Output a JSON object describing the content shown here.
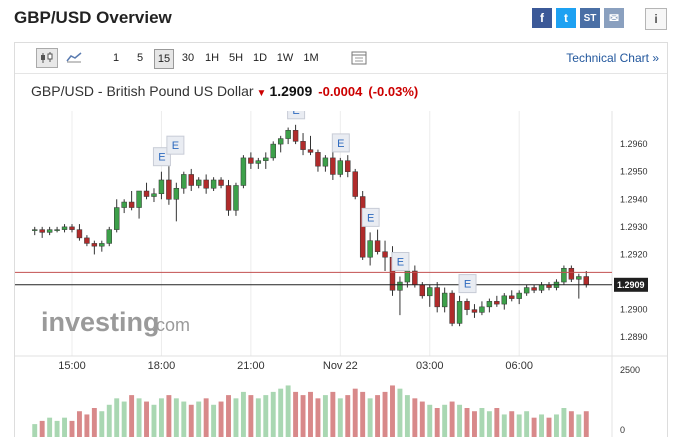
{
  "header": {
    "title": "GBP/USD Overview"
  },
  "share": {
    "facebook": "f",
    "twitter": "t",
    "stocktwits": "ST",
    "email": "✉",
    "info": "i"
  },
  "toolbar": {
    "chart_types": [
      "candlestick-icon",
      "area-chart-icon"
    ],
    "intervals": [
      "1",
      "5",
      "15",
      "30",
      "1H",
      "5H",
      "1D",
      "1W",
      "1M"
    ],
    "selected_interval": "15",
    "technical_chart": "Technical Chart »"
  },
  "quote": {
    "name": "GBP/USD - British Pound US Dollar",
    "direction_icon": "down-arrow-icon",
    "price": "1.2909",
    "change": "-0.0004",
    "change_pct": "(-0.03%)"
  },
  "watermark": {
    "brand": "investing",
    "suffix": ".com"
  },
  "colors": {
    "up": "#3da04a",
    "down": "#b02b2b",
    "vol_up": "#a9d7b2",
    "vol_down": "#d8898a"
  },
  "chart_data": {
    "type": "candlestick",
    "y_ticks": [
      "1.2960",
      "1.2950",
      "1.2940",
      "1.2930",
      "1.2920",
      "1.2900",
      "1.2890"
    ],
    "current_price_label": "1.2909",
    "x_ticks": [
      "15:00",
      "18:00",
      "21:00",
      "Nov 22",
      "03:00",
      "06:00"
    ],
    "volume_ticks": [
      "2500",
      "0"
    ],
    "event_label": "E",
    "ylim": [
      1.2885,
      1.2972
    ],
    "red_line": 1.29135,
    "black_line": 1.2909,
    "candles": [
      [
        1.2929,
        1.293,
        1.2927,
        1.2929
      ],
      [
        1.2929,
        1.293,
        1.2926,
        1.2928
      ],
      [
        1.2928,
        1.293,
        1.2927,
        1.2929
      ],
      [
        1.2929,
        1.293,
        1.2928,
        1.2929
      ],
      [
        1.2929,
        1.2931,
        1.2928,
        1.293
      ],
      [
        1.293,
        1.2931,
        1.2928,
        1.2929
      ],
      [
        1.2929,
        1.2931,
        1.2925,
        1.2926
      ],
      [
        1.2926,
        1.2927,
        1.2923,
        1.2924
      ],
      [
        1.2924,
        1.2925,
        1.292,
        1.2923
      ],
      [
        1.2923,
        1.2925,
        1.2921,
        1.2924
      ],
      [
        1.2924,
        1.293,
        1.2923,
        1.2929
      ],
      [
        1.2929,
        1.294,
        1.2928,
        1.2937
      ],
      [
        1.2937,
        1.294,
        1.2935,
        1.2939
      ],
      [
        1.2939,
        1.2943,
        1.2936,
        1.2937
      ],
      [
        1.2937,
        1.2943,
        1.2933,
        1.2943
      ],
      [
        1.2943,
        1.2946,
        1.294,
        1.2941
      ],
      [
        1.2941,
        1.2944,
        1.2939,
        1.2942
      ],
      [
        1.2942,
        1.295,
        1.294,
        1.2947
      ],
      [
        1.2947,
        1.2952,
        1.2938,
        1.294
      ],
      [
        1.294,
        1.2946,
        1.2932,
        1.2944
      ],
      [
        1.2944,
        1.295,
        1.2942,
        1.2949
      ],
      [
        1.2949,
        1.2951,
        1.2943,
        1.2945
      ],
      [
        1.2945,
        1.2948,
        1.2944,
        1.2947
      ],
      [
        1.2947,
        1.2949,
        1.2942,
        1.2944
      ],
      [
        1.2944,
        1.2948,
        1.2943,
        1.2947
      ],
      [
        1.2947,
        1.2948,
        1.2944,
        1.2945
      ],
      [
        1.2945,
        1.2947,
        1.2934,
        1.2936
      ],
      [
        1.2936,
        1.2946,
        1.2934,
        1.2945
      ],
      [
        1.2945,
        1.2956,
        1.2944,
        1.2955
      ],
      [
        1.2955,
        1.2957,
        1.2951,
        1.2953
      ],
      [
        1.2953,
        1.2955,
        1.2951,
        1.2954
      ],
      [
        1.2954,
        1.2957,
        1.2951,
        1.2955
      ],
      [
        1.2955,
        1.2961,
        1.2954,
        1.296
      ],
      [
        1.296,
        1.2963,
        1.2957,
        1.2962
      ],
      [
        1.2962,
        1.2966,
        1.296,
        1.2965
      ],
      [
        1.2965,
        1.2967,
        1.296,
        1.2961
      ],
      [
        1.2961,
        1.2964,
        1.2956,
        1.2958
      ],
      [
        1.2958,
        1.2963,
        1.2956,
        1.2957
      ],
      [
        1.2957,
        1.2958,
        1.295,
        1.2952
      ],
      [
        1.2952,
        1.2956,
        1.295,
        1.2955
      ],
      [
        1.2955,
        1.2958,
        1.2947,
        1.2949
      ],
      [
        1.2949,
        1.2955,
        1.2948,
        1.2954
      ],
      [
        1.2954,
        1.2956,
        1.2948,
        1.295
      ],
      [
        1.295,
        1.2951,
        1.294,
        1.2941
      ],
      [
        1.2941,
        1.2943,
        1.2918,
        1.2919
      ],
      [
        1.2919,
        1.2928,
        1.2916,
        1.2925
      ],
      [
        1.2925,
        1.2929,
        1.292,
        1.2921
      ],
      [
        1.2921,
        1.2925,
        1.2914,
        1.2919
      ],
      [
        1.2919,
        1.2923,
        1.2905,
        1.2907
      ],
      [
        1.2907,
        1.2912,
        1.2898,
        1.291
      ],
      [
        1.291,
        1.2918,
        1.2908,
        1.2914
      ],
      [
        1.2914,
        1.2916,
        1.2908,
        1.2909
      ],
      [
        1.2909,
        1.291,
        1.2904,
        1.2905
      ],
      [
        1.2905,
        1.2909,
        1.2901,
        1.2908
      ],
      [
        1.2908,
        1.291,
        1.2899,
        1.2901
      ],
      [
        1.2901,
        1.2908,
        1.2899,
        1.2906
      ],
      [
        1.2906,
        1.2907,
        1.2894,
        1.2895
      ],
      [
        1.2895,
        1.2905,
        1.2894,
        1.2903
      ],
      [
        1.2903,
        1.2904,
        1.2898,
        1.29
      ],
      [
        1.29,
        1.2902,
        1.2897,
        1.2899
      ],
      [
        1.2899,
        1.2903,
        1.2898,
        1.2901
      ],
      [
        1.2901,
        1.2904,
        1.2899,
        1.2903
      ],
      [
        1.2903,
        1.2905,
        1.2901,
        1.2902
      ],
      [
        1.2902,
        1.2906,
        1.29,
        1.2905
      ],
      [
        1.2905,
        1.2907,
        1.2903,
        1.2904
      ],
      [
        1.2904,
        1.2907,
        1.2902,
        1.2906
      ],
      [
        1.2906,
        1.2909,
        1.2905,
        1.2908
      ],
      [
        1.2908,
        1.2909,
        1.2906,
        1.2907
      ],
      [
        1.2907,
        1.291,
        1.2906,
        1.2909
      ],
      [
        1.2909,
        1.291,
        1.2907,
        1.2908
      ],
      [
        1.2908,
        1.2911,
        1.2907,
        1.291
      ],
      [
        1.291,
        1.2916,
        1.2909,
        1.2915
      ],
      [
        1.2915,
        1.2916,
        1.291,
        1.2911
      ],
      [
        1.2911,
        1.2913,
        1.2904,
        1.2912
      ],
      [
        1.2912,
        1.2914,
        1.2908,
        1.2909
      ]
    ],
    "volumes": [
      4,
      5,
      6,
      5,
      6,
      5,
      8,
      7,
      9,
      8,
      10,
      12,
      11,
      13,
      12,
      11,
      10,
      12,
      13,
      12,
      11,
      10,
      11,
      12,
      10,
      11,
      13,
      12,
      14,
      13,
      12,
      13,
      14,
      15,
      16,
      14,
      13,
      14,
      12,
      13,
      14,
      12,
      13,
      15,
      14,
      12,
      13,
      14,
      16,
      15,
      13,
      12,
      11,
      10,
      9,
      10,
      11,
      10,
      9,
      8,
      9,
      8,
      9,
      7,
      8,
      7,
      8,
      6,
      7,
      6,
      7,
      9,
      8,
      7,
      8
    ],
    "events": [
      {
        "candle": 17,
        "stack": 0
      },
      {
        "candle": 18,
        "stack": 1
      },
      {
        "candle": 35,
        "stack": 0
      },
      {
        "candle": 41,
        "stack": 0
      },
      {
        "candle": 45,
        "stack": 0
      },
      {
        "candle": 49,
        "stack": 0
      },
      {
        "candle": 58,
        "stack": 0
      }
    ]
  }
}
